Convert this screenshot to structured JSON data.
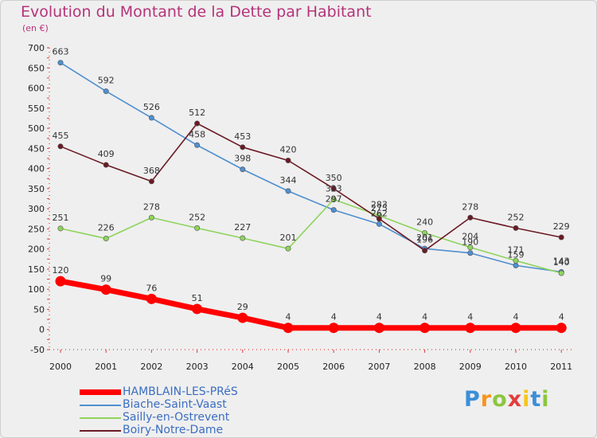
{
  "header": {
    "title": "Evolution du Montant de la Dette par Habitant",
    "subtitle": "(en €)"
  },
  "logo": {
    "text": "Proxiti"
  },
  "chart_data": {
    "type": "line",
    "title": "Evolution du Montant de la Dette par Habitant",
    "subtitle": "(en €)",
    "xlabel": "",
    "ylabel": "",
    "x": [
      "2000",
      "2001",
      "2002",
      "2003",
      "2004",
      "2005",
      "2006",
      "2007",
      "2008",
      "2009",
      "2010",
      "2011"
    ],
    "ylim": [
      -50,
      700
    ],
    "yticks": [
      -50,
      0,
      50,
      100,
      150,
      200,
      250,
      300,
      350,
      400,
      450,
      500,
      550,
      600,
      650,
      700
    ],
    "grid": false,
    "legend_position": "bottom-left",
    "series": [
      {
        "name": "HAMBLAIN-LES-PRéS",
        "color": "#ff0000",
        "values": [
          120,
          99,
          76,
          51,
          29,
          4,
          4,
          4,
          4,
          4,
          4,
          4
        ],
        "labels": [
          "120",
          "99",
          "76",
          "51",
          "29",
          "4",
          "4",
          "4",
          "4",
          "4",
          "4",
          "4"
        ]
      },
      {
        "name": "Biache-Saint-Vaast",
        "color": "#4f8fd0",
        "values": [
          663,
          592,
          526,
          458,
          398,
          344,
          297,
          262,
          201,
          190,
          159,
          143
        ],
        "labels": [
          "663",
          "592",
          "526",
          "458",
          "398",
          "344",
          "297",
          "262",
          "201",
          "190",
          "159",
          "143"
        ]
      },
      {
        "name": "Sailly-en-Ostrevent",
        "color": "#8ed45c",
        "values": [
          251,
          226,
          278,
          252,
          227,
          201,
          323,
          283,
          240,
          204,
          171,
          140
        ],
        "labels": [
          "251",
          "226",
          "278",
          "252",
          "227",
          "201",
          "323",
          "283",
          "240",
          "204",
          "171",
          "140"
        ]
      },
      {
        "name": "Boiry-Notre-Dame",
        "color": "#6b1a24",
        "values": [
          455,
          409,
          368,
          512,
          453,
          420,
          350,
          275,
          196,
          278,
          252,
          229
        ],
        "labels": [
          "455",
          "409",
          "368",
          "512",
          "453",
          "420",
          "350",
          "275",
          "196",
          "278",
          "252",
          "229"
        ]
      }
    ]
  }
}
